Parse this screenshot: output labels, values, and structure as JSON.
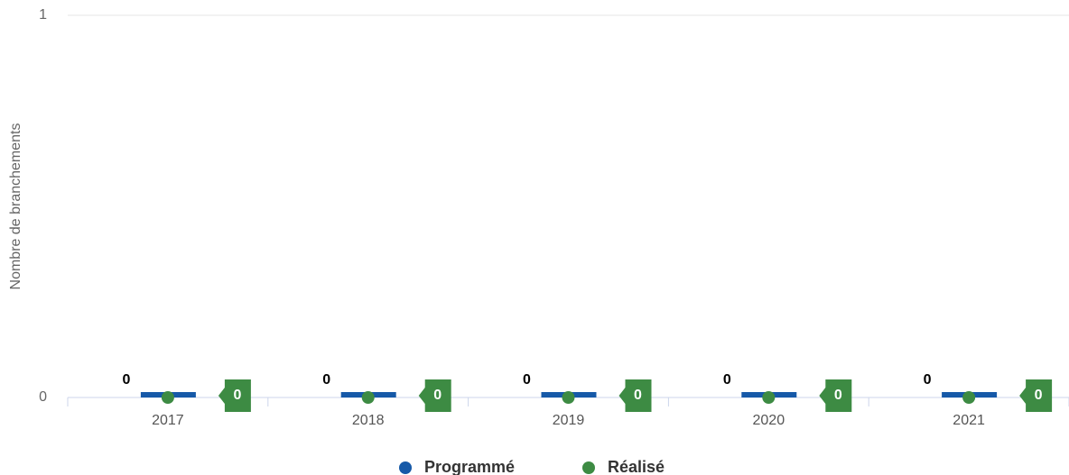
{
  "chart_data": {
    "type": "combo",
    "y_axis_label": "Nombre de branchements",
    "categories": [
      "2017",
      "2018",
      "2019",
      "2020",
      "2021"
    ],
    "series": [
      {
        "name": "Programmé",
        "type": "bar",
        "color": "#1659a8",
        "values": [
          0,
          0,
          0,
          0,
          0
        ]
      },
      {
        "name": "Réalisé",
        "type": "scatter",
        "color": "#3d8b43",
        "values": [
          0,
          0,
          0,
          0,
          0
        ]
      }
    ],
    "ylim": [
      0,
      1
    ],
    "yticks": [
      0,
      1
    ],
    "grid": true,
    "legend": "bottom"
  }
}
